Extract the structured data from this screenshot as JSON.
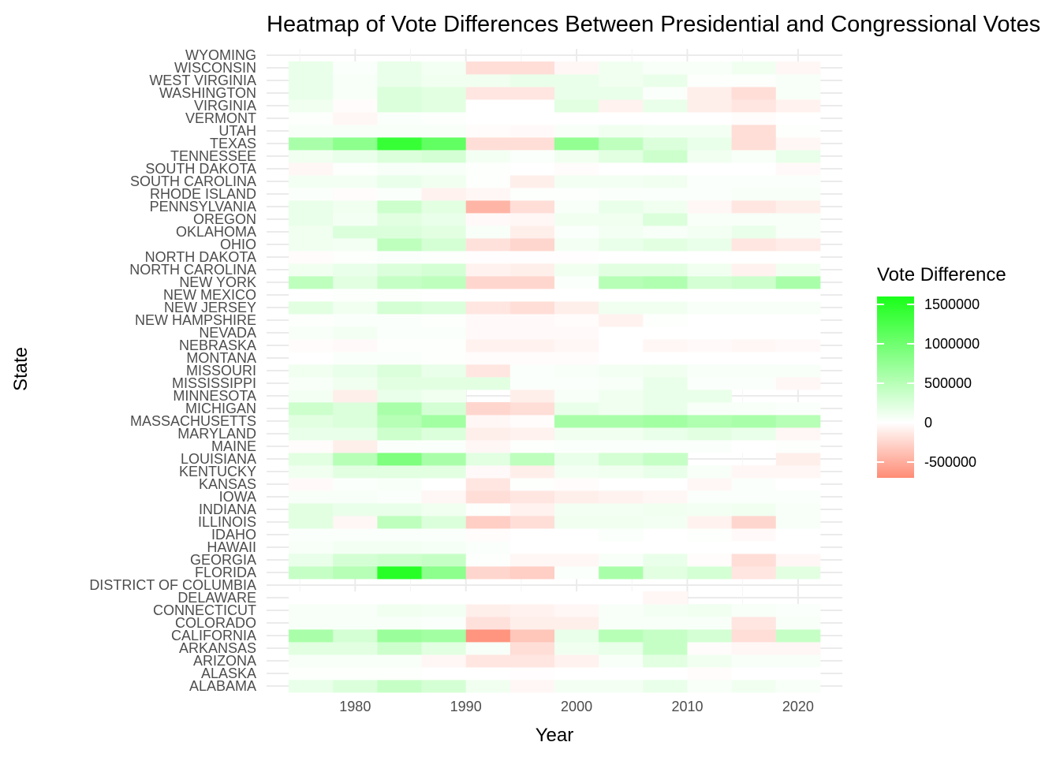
{
  "chart_data": {
    "type": "heatmap",
    "title": "Heatmap of Vote Differences Between Presidential and Congressional Votes",
    "xlabel": "Year",
    "ylabel": "State",
    "legend": {
      "title": "Vote Difference",
      "position": "right",
      "breaks": [
        1500000,
        1000000,
        500000,
        0,
        -500000
      ],
      "labels": [
        "1500000",
        "1000000",
        "500000",
        "0",
        "-500000"
      ]
    },
    "colors": {
      "low": "#ff8c75",
      "mid": "#ffffff",
      "high": "#19ff19"
    },
    "value_range": [
      -700000,
      1600000
    ],
    "x_ticks": [
      1980,
      1990,
      2000,
      2010,
      2020
    ],
    "xlim": [
      1972,
      2024
    ],
    "years": [
      1976,
      1980,
      1984,
      1988,
      1992,
      1996,
      2000,
      2004,
      2008,
      2012,
      2016,
      2020
    ],
    "states": [
      "ALABAMA",
      "ALASKA",
      "ARIZONA",
      "ARKANSAS",
      "CALIFORNIA",
      "COLORADO",
      "CONNECTICUT",
      "DELAWARE",
      "DISTRICT OF COLUMBIA",
      "FLORIDA",
      "GEORGIA",
      "HAWAII",
      "IDAHO",
      "ILLINOIS",
      "INDIANA",
      "IOWA",
      "KANSAS",
      "KENTUCKY",
      "LOUISIANA",
      "MAINE",
      "MARYLAND",
      "MASSACHUSETTS",
      "MICHIGAN",
      "MINNESOTA",
      "MISSISSIPPI",
      "MISSOURI",
      "MONTANA",
      "NEBRASKA",
      "NEVADA",
      "NEW HAMPSHIRE",
      "NEW JERSEY",
      "NEW MEXICO",
      "NEW YORK",
      "NORTH CAROLINA",
      "NORTH DAKOTA",
      "OHIO",
      "OKLAHOMA",
      "OREGON",
      "PENNSYLVANIA",
      "RHODE ISLAND",
      "SOUTH CAROLINA",
      "SOUTH DAKOTA",
      "TENNESSEE",
      "TEXAS",
      "UTAH",
      "VERMONT",
      "VIRGINIA",
      "WASHINGTON",
      "WEST VIRGINIA",
      "WISCONSIN",
      "WYOMING"
    ],
    "values": {
      "ALABAMA": [
        150000,
        250000,
        400000,
        300000,
        100000,
        -50000,
        80000,
        80000,
        150000,
        50000,
        100000,
        50000
      ],
      "ALASKA": [
        20000,
        20000,
        20000,
        10000,
        10000,
        -10000,
        10000,
        10000,
        10000,
        -20000,
        10000,
        10000
      ],
      "ARIZONA": [
        50000,
        50000,
        50000,
        -50000,
        -150000,
        -150000,
        -80000,
        50000,
        200000,
        100000,
        50000,
        50000
      ],
      "ARKANSAS": [
        200000,
        200000,
        350000,
        200000,
        50000,
        -200000,
        100000,
        150000,
        400000,
        -20000,
        -50000,
        -50000
      ],
      "CALIFORNIA": [
        600000,
        300000,
        700000,
        650000,
        -650000,
        -350000,
        150000,
        500000,
        400000,
        300000,
        -200000,
        400000
      ],
      "COLORADO": [
        50000,
        50000,
        50000,
        30000,
        -180000,
        -100000,
        -100000,
        50000,
        50000,
        50000,
        -150000,
        50000
      ],
      "CONNECTICUT": [
        50000,
        50000,
        100000,
        80000,
        -100000,
        -80000,
        -50000,
        50000,
        80000,
        100000,
        50000,
        30000
      ],
      "DELAWARE": [
        10000,
        10000,
        10000,
        10000,
        0,
        0,
        0,
        0,
        -50000,
        null,
        null,
        null
      ],
      "DISTRICT OF COLUMBIA": [
        null,
        null,
        null,
        null,
        null,
        null,
        null,
        null,
        null,
        null,
        null,
        null
      ],
      "FLORIDA": [
        400000,
        500000,
        1500000,
        800000,
        -250000,
        -300000,
        30000,
        600000,
        200000,
        300000,
        -150000,
        200000
      ],
      "GEORGIA": [
        150000,
        300000,
        350000,
        400000,
        20000,
        -50000,
        -50000,
        50000,
        150000,
        -20000,
        -200000,
        -50000
      ],
      "HAWAII": [
        50000,
        80000,
        80000,
        60000,
        30000,
        10000,
        10000,
        10000,
        10000,
        10000,
        10000,
        0
      ],
      "IDAHO": [
        30000,
        30000,
        30000,
        30000,
        -20000,
        0,
        10000,
        30000,
        10000,
        20000,
        -30000,
        10000
      ],
      "ILLINOIS": [
        200000,
        -50000,
        450000,
        250000,
        -300000,
        -200000,
        100000,
        100000,
        80000,
        -80000,
        -250000,
        50000
      ],
      "INDIANA": [
        200000,
        150000,
        150000,
        100000,
        20000,
        -80000,
        80000,
        80000,
        100000,
        80000,
        100000,
        50000
      ],
      "IOWA": [
        50000,
        50000,
        30000,
        -50000,
        -200000,
        -150000,
        -100000,
        -80000,
        -50000,
        30000,
        30000,
        30000
      ],
      "KANSAS": [
        -30000,
        30000,
        50000,
        10000,
        -150000,
        20000,
        -20000,
        10000,
        10000,
        -50000,
        30000,
        10000
      ],
      "KENTUCKY": [
        100000,
        200000,
        200000,
        200000,
        -30000,
        -100000,
        80000,
        100000,
        150000,
        50000,
        -50000,
        -50000
      ],
      "LOUISIANA": [
        200000,
        500000,
        900000,
        600000,
        200000,
        450000,
        150000,
        300000,
        400000,
        null,
        null,
        -100000
      ],
      "MAINE": [
        -20000,
        -100000,
        30000,
        30000,
        -50000,
        20000,
        30000,
        30000,
        30000,
        30000,
        0,
        20000
      ],
      "MARYLAND": [
        150000,
        150000,
        350000,
        250000,
        -100000,
        -80000,
        100000,
        100000,
        150000,
        200000,
        150000,
        -50000
      ],
      "MASSACHUSETTS": [
        200000,
        250000,
        500000,
        650000,
        -50000,
        -20000,
        600000,
        600000,
        650000,
        550000,
        600000,
        500000
      ],
      "MICHIGAN": [
        350000,
        250000,
        600000,
        300000,
        -250000,
        -200000,
        150000,
        100000,
        150000,
        50000,
        50000,
        30000
      ],
      "MINNESOTA": [
        80000,
        -100000,
        150000,
        100000,
        null,
        -100000,
        50000,
        100000,
        150000,
        150000,
        null,
        null
      ],
      "MISSISSIPPI": [
        50000,
        100000,
        200000,
        200000,
        200000,
        30000,
        30000,
        50000,
        150000,
        30000,
        30000,
        -50000
      ],
      "MISSOURI": [
        100000,
        150000,
        250000,
        150000,
        -150000,
        30000,
        50000,
        80000,
        100000,
        50000,
        50000,
        50000
      ],
      "MONTANA": [
        10000,
        30000,
        30000,
        20000,
        -20000,
        -20000,
        -20000,
        10000,
        0,
        10000,
        10000,
        0
      ],
      "NEBRASKA": [
        -20000,
        -30000,
        20000,
        20000,
        -80000,
        -80000,
        -50000,
        0,
        -50000,
        -30000,
        -50000,
        -30000
      ],
      "NEVADA": [
        50000,
        80000,
        30000,
        30000,
        -30000,
        -30000,
        -30000,
        10000,
        10000,
        10000,
        10000,
        10000
      ],
      "NEW HAMPSHIRE": [
        20000,
        30000,
        30000,
        20000,
        -30000,
        -30000,
        -20000,
        -80000,
        20000,
        10000,
        10000,
        10000
      ],
      "NEW JERSEY": [
        200000,
        100000,
        300000,
        250000,
        -150000,
        -200000,
        -100000,
        100000,
        100000,
        50000,
        50000,
        50000
      ],
      "NEW MEXICO": [
        10000,
        20000,
        20000,
        10000,
        0,
        0,
        0,
        0,
        0,
        0,
        0,
        0
      ],
      "NEW YORK": [
        450000,
        200000,
        400000,
        450000,
        -250000,
        -250000,
        30000,
        500000,
        550000,
        300000,
        350000,
        600000
      ],
      "NORTH CAROLINA": [
        100000,
        150000,
        250000,
        300000,
        -80000,
        -100000,
        100000,
        200000,
        200000,
        100000,
        -80000,
        100000
      ],
      "NORTH DAKOTA": [
        -20000,
        20000,
        30000,
        20000,
        -10000,
        -10000,
        -10000,
        10000,
        10000,
        10000,
        10000,
        10000
      ],
      "OHIO": [
        100000,
        80000,
        450000,
        300000,
        -180000,
        -250000,
        80000,
        150000,
        200000,
        150000,
        -150000,
        -120000
      ],
      "OKLAHOMA": [
        100000,
        250000,
        250000,
        200000,
        50000,
        -100000,
        30000,
        80000,
        50000,
        80000,
        150000,
        50000
      ],
      "OREGON": [
        150000,
        80000,
        200000,
        150000,
        -30000,
        -50000,
        100000,
        100000,
        250000,
        50000,
        50000,
        50000
      ],
      "PENNSYLVANIA": [
        150000,
        100000,
        350000,
        200000,
        -450000,
        -200000,
        50000,
        150000,
        100000,
        -50000,
        -150000,
        -100000
      ],
      "RHODE ISLAND": [
        30000,
        -20000,
        30000,
        -80000,
        -50000,
        20000,
        20000,
        30000,
        30000,
        30000,
        50000,
        50000
      ],
      "SOUTH CAROLINA": [
        80000,
        80000,
        150000,
        100000,
        20000,
        -100000,
        80000,
        80000,
        100000,
        30000,
        30000,
        30000
      ],
      "SOUTH DAKOTA": [
        -50000,
        20000,
        50000,
        50000,
        20000,
        10000,
        -20000,
        10000,
        10000,
        10000,
        10000,
        -30000
      ],
      "TENNESSEE": [
        100000,
        150000,
        250000,
        300000,
        80000,
        30000,
        100000,
        200000,
        350000,
        100000,
        50000,
        150000
      ],
      "TEXAS": [
        600000,
        800000,
        1400000,
        1100000,
        -200000,
        -200000,
        750000,
        450000,
        250000,
        150000,
        -200000,
        -50000
      ],
      "UTAH": [
        50000,
        50000,
        50000,
        50000,
        -20000,
        -30000,
        50000,
        100000,
        80000,
        80000,
        -200000,
        20000
      ],
      "VERMONT": [
        20000,
        -50000,
        30000,
        20000,
        10000,
        10000,
        10000,
        10000,
        10000,
        10000,
        -20000,
        10000
      ],
      "VIRGINIA": [
        100000,
        -20000,
        250000,
        200000,
        0,
        0,
        200000,
        -80000,
        150000,
        -100000,
        -150000,
        -80000
      ],
      "WASHINGTON": [
        150000,
        50000,
        250000,
        200000,
        -150000,
        -150000,
        150000,
        150000,
        30000,
        -100000,
        -200000,
        50000
      ],
      "WEST VIRGINIA": [
        150000,
        50000,
        150000,
        100000,
        100000,
        150000,
        150000,
        100000,
        150000,
        20000,
        20000,
        50000
      ],
      "WISCONSIN": [
        150000,
        30000,
        150000,
        80000,
        -200000,
        -200000,
        -50000,
        100000,
        50000,
        50000,
        100000,
        -50000
      ],
      "WYOMING": [
        null,
        null,
        null,
        null,
        null,
        null,
        null,
        null,
        null,
        null,
        null,
        null
      ]
    }
  }
}
